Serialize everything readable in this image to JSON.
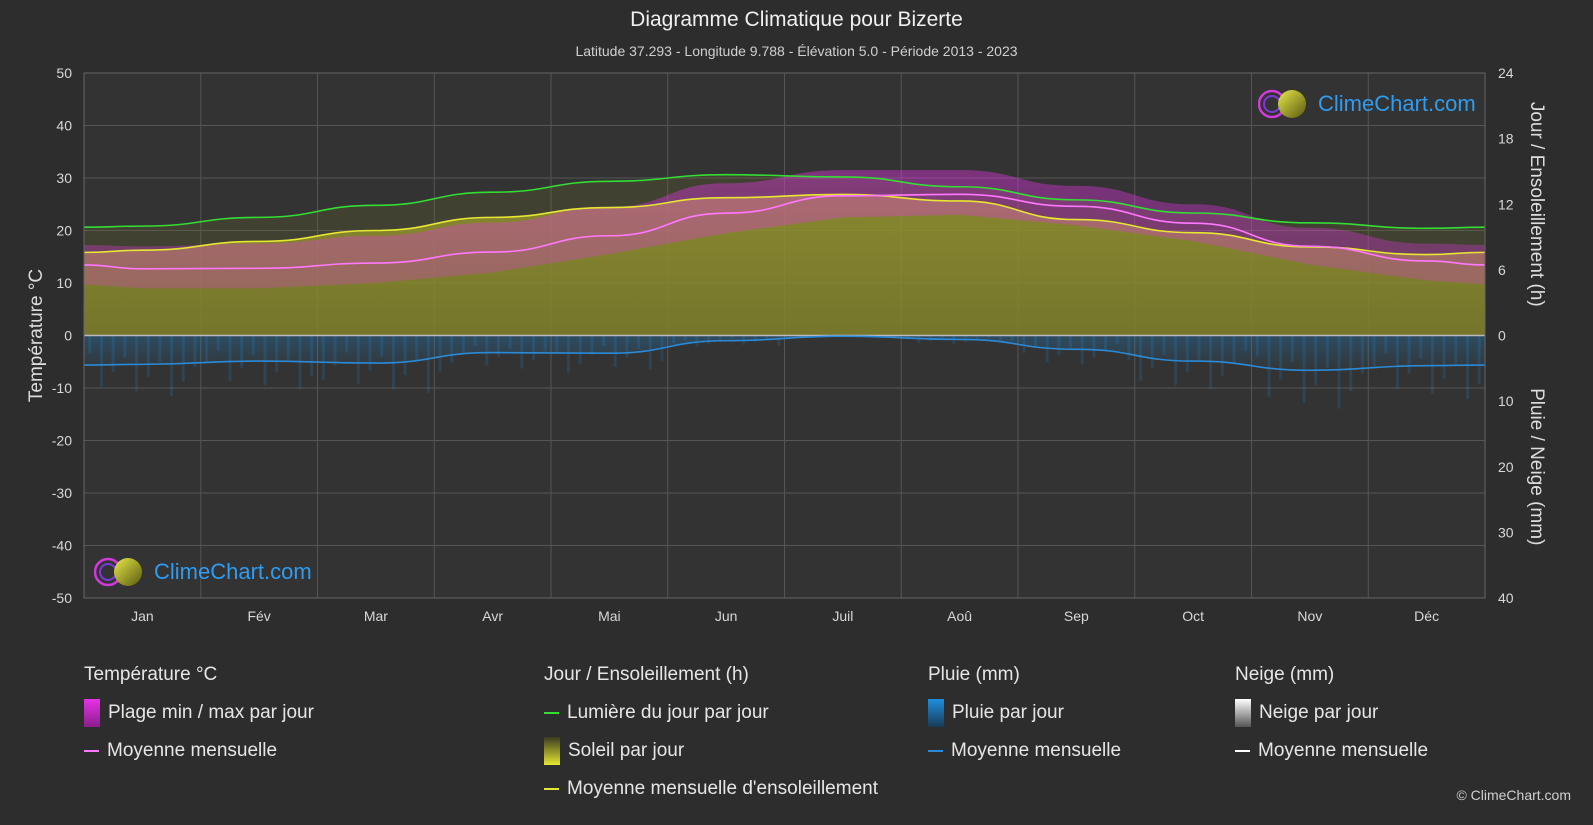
{
  "title": "Diagramme Climatique pour Bizerte",
  "subtitle": "Latitude 37.293 - Longitude 9.788 - Élévation 5.0 - Période 2013 - 2023",
  "copyright": "© ClimeChart.com",
  "watermark": "ClimeChart.com",
  "colors": {
    "background": "#2d2d2d",
    "plot_background": "#333333",
    "grid": "#555555",
    "temp_range": "#e633e6",
    "temp_mean": "#ff77ff",
    "daylight": "#33dd33",
    "sunshine_fill": "#a8a830",
    "sunshine_mean": "#e6e633",
    "rain": "#1f8fdf",
    "rain_mean": "#2a8ad8",
    "snow_mean": "#ffffff"
  },
  "legend": {
    "temperature": {
      "title": "Température °C",
      "range_label": "Plage min / max par jour",
      "mean_label": "Moyenne mensuelle"
    },
    "sun": {
      "title": "Jour / Ensoleillement (h)",
      "daylight_label": "Lumière du jour par jour",
      "sunshine_label": "Soleil par jour",
      "sunshine_mean_label": "Moyenne mensuelle d'ensoleillement"
    },
    "rain": {
      "title": "Pluie (mm)",
      "rain_label": "Pluie par jour",
      "mean_label": "Moyenne mensuelle"
    },
    "snow": {
      "title": "Neige (mm)",
      "snow_label": "Neige par jour",
      "mean_label": "Moyenne mensuelle"
    }
  },
  "chart_data": {
    "type": "line",
    "title": "Diagramme Climatique pour Bizerte",
    "categories": [
      "Jan",
      "Fév",
      "Mar",
      "Avr",
      "Mai",
      "Jun",
      "Juil",
      "Aoû",
      "Sep",
      "Oct",
      "Nov",
      "Déc"
    ],
    "y_left": {
      "label": "Température °C",
      "range": [
        -50,
        50
      ],
      "ticks": [
        50,
        40,
        30,
        20,
        10,
        0,
        -10,
        -20,
        -30,
        -40,
        -50
      ]
    },
    "y_right_top": {
      "label": "Jour / Ensoleillement (h)",
      "range": [
        0,
        24
      ],
      "ticks": [
        24,
        18,
        12,
        6,
        0
      ]
    },
    "y_right_bottom": {
      "label": "Pluie / Neige (mm)",
      "range": [
        0,
        40
      ],
      "ticks": [
        0,
        10,
        20,
        30,
        40
      ]
    },
    "grid": true,
    "series": [
      {
        "name": "Moyenne mensuelle",
        "kind": "temp_mean",
        "axis": "temperature",
        "values": [
          12.7,
          12.8,
          13.8,
          15.9,
          19.0,
          23.3,
          26.6,
          26.9,
          24.6,
          21.4,
          17.0,
          14.2
        ]
      },
      {
        "name": "Plage min / max par jour",
        "kind": "temp_range",
        "axis": "temperature",
        "min": [
          9.0,
          9.0,
          10.0,
          12.0,
          15.5,
          19.5,
          22.5,
          23.0,
          21.0,
          18.0,
          13.5,
          10.5
        ],
        "max": [
          17.0,
          17.5,
          19.0,
          21.5,
          24.5,
          29.0,
          31.5,
          31.5,
          28.5,
          25.0,
          20.5,
          17.5
        ]
      },
      {
        "name": "Lumière du jour par jour",
        "kind": "daylight",
        "axis": "hours",
        "values": [
          10.0,
          10.8,
          11.9,
          13.1,
          14.1,
          14.7,
          14.5,
          13.6,
          12.4,
          11.2,
          10.3,
          9.8
        ]
      },
      {
        "name": "Moyenne mensuelle d'ensoleillement",
        "kind": "sunshine_mean",
        "axis": "hours",
        "values": [
          7.8,
          8.6,
          9.6,
          10.8,
          11.7,
          12.6,
          12.9,
          12.3,
          10.6,
          9.4,
          8.1,
          7.4
        ]
      },
      {
        "name": "Moyenne mensuelle",
        "kind": "rain_mean",
        "axis": "precip",
        "values": [
          4.4,
          3.9,
          4.2,
          2.6,
          2.7,
          0.8,
          0.1,
          0.6,
          2.1,
          3.9,
          5.3,
          4.6
        ]
      }
    ]
  }
}
